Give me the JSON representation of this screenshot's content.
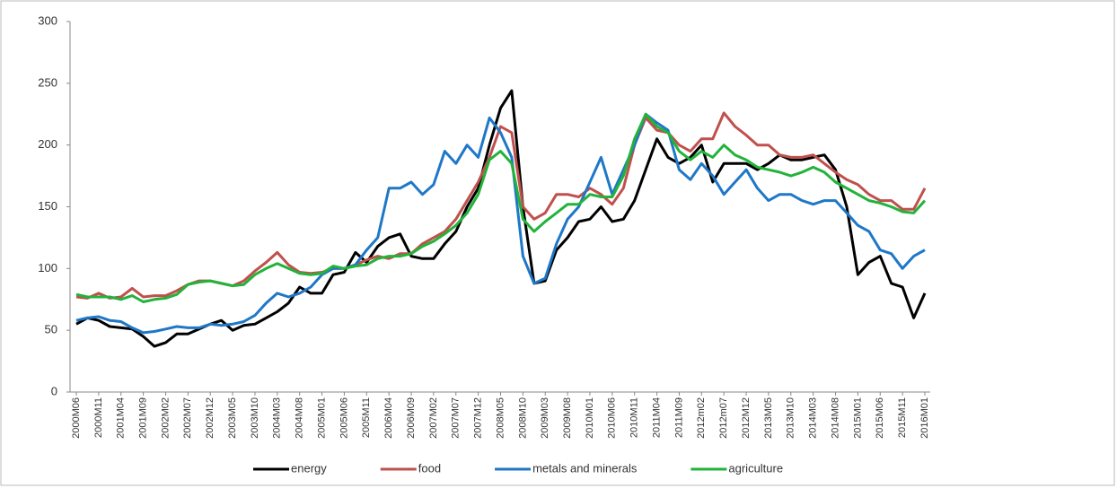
{
  "chart_data": {
    "type": "line",
    "categories": [
      "2000M06",
      null,
      "2000M11",
      null,
      "2001M04",
      null,
      "2001M09",
      null,
      "2002M02",
      null,
      "2002M07",
      null,
      "2002M12",
      null,
      "2003M05",
      null,
      "2003M10",
      null,
      "2004M03",
      null,
      "2004M08",
      null,
      "2005M01",
      null,
      "2005M06",
      null,
      "2005M11",
      null,
      "2006M04",
      null,
      "2006M09",
      null,
      "2007M02",
      null,
      "2007M07",
      null,
      "2007M12",
      null,
      "2008M05",
      null,
      "2008M10",
      null,
      "2009M03",
      null,
      "2009M08",
      null,
      "2010M01",
      null,
      "2010M06",
      null,
      "2010M11",
      null,
      "2011M04",
      null,
      "2011M09",
      null,
      "2012m02",
      null,
      "2012m07",
      null,
      "2012M12",
      null,
      "2013M05",
      null,
      "2013M10",
      null,
      "2014M03",
      null,
      "2014M08",
      null,
      "2015M01",
      null,
      "2015M06",
      null,
      "2015M11",
      null,
      "2016M01"
    ],
    "series": [
      {
        "name": "energy",
        "color": "#000000",
        "values": [
          55,
          60,
          58,
          53,
          52,
          51,
          45,
          37,
          40,
          47,
          47,
          51,
          55,
          58,
          50,
          54,
          55,
          60,
          65,
          72,
          85,
          80,
          80,
          95,
          97,
          113,
          105,
          118,
          125,
          128,
          110,
          108,
          108,
          120,
          130,
          150,
          165,
          200,
          230,
          244,
          150,
          88,
          90,
          115,
          125,
          138,
          140,
          150,
          138,
          140,
          155,
          180,
          205,
          190,
          185,
          190,
          200,
          170,
          185,
          185,
          185,
          180,
          185,
          192,
          188,
          188,
          190,
          192,
          180,
          150,
          95,
          105,
          110,
          88,
          85,
          60,
          80
        ]
      },
      {
        "name": "food",
        "color": "#c0504d",
        "values": [
          77,
          76,
          80,
          76,
          77,
          84,
          77,
          78,
          78,
          82,
          87,
          90,
          90,
          88,
          86,
          90,
          98,
          105,
          113,
          103,
          97,
          96,
          97,
          100,
          100,
          103,
          107,
          110,
          108,
          112,
          112,
          120,
          125,
          130,
          140,
          155,
          170,
          190,
          215,
          210,
          150,
          140,
          145,
          160,
          160,
          158,
          165,
          160,
          152,
          165,
          200,
          222,
          212,
          210,
          200,
          195,
          205,
          205,
          226,
          215,
          208,
          200,
          200,
          192,
          190,
          190,
          192,
          185,
          178,
          172,
          168,
          160,
          155,
          155,
          148,
          148,
          165
        ]
      },
      {
        "name": "metals and minerals",
        "color": "#1f77c8",
        "values": [
          58,
          60,
          61,
          58,
          57,
          52,
          48,
          49,
          51,
          53,
          52,
          52,
          55,
          54,
          55,
          57,
          62,
          72,
          80,
          77,
          80,
          85,
          95,
          100,
          100,
          103,
          115,
          125,
          165,
          165,
          170,
          160,
          168,
          195,
          185,
          200,
          190,
          222,
          210,
          190,
          110,
          88,
          92,
          120,
          140,
          150,
          170,
          190,
          160,
          180,
          200,
          225,
          218,
          212,
          180,
          172,
          185,
          175,
          160,
          170,
          180,
          165,
          155,
          160,
          160,
          155,
          152,
          155,
          155,
          145,
          135,
          130,
          115,
          112,
          100,
          110,
          115
        ]
      },
      {
        "name": "agriculture",
        "color": "#22b33a",
        "values": [
          79,
          77,
          77,
          77,
          75,
          78,
          73,
          75,
          76,
          79,
          87,
          89,
          90,
          88,
          86,
          87,
          95,
          100,
          104,
          100,
          96,
          95,
          96,
          102,
          100,
          102,
          103,
          108,
          110,
          110,
          112,
          118,
          122,
          128,
          135,
          145,
          160,
          188,
          195,
          185,
          140,
          130,
          138,
          145,
          152,
          152,
          160,
          158,
          158,
          175,
          205,
          225,
          215,
          210,
          195,
          188,
          195,
          190,
          200,
          192,
          188,
          182,
          180,
          178,
          175,
          178,
          182,
          178,
          170,
          165,
          160,
          155,
          153,
          150,
          146,
          145,
          155
        ]
      }
    ],
    "ylim": [
      0,
      300
    ],
    "yticks": [
      0,
      50,
      100,
      150,
      200,
      250,
      300
    ],
    "grid": false,
    "legend": "bottom"
  }
}
